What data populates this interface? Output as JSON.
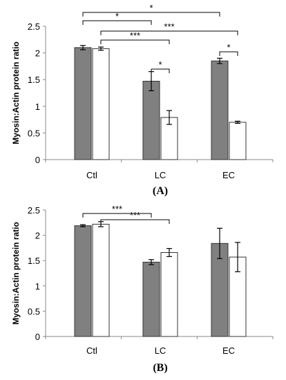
{
  "chart_data": [
    {
      "type": "bar",
      "panel_label": "(A)",
      "ylabel": "Myosin:Actin protein ratio",
      "categories": [
        "Ctl",
        "LC",
        "EC"
      ],
      "ylim": [
        0,
        2.5
      ],
      "yticks": [
        "0",
        "0.5",
        "1",
        "1.5",
        "2",
        "2.5"
      ],
      "grid": false,
      "series": [
        {
          "color": "#808080",
          "values": [
            2.1,
            1.47,
            1.85
          ],
          "errors": [
            0.04,
            0.18,
            0.05
          ]
        },
        {
          "color": "#ffffff",
          "values": [
            2.08,
            0.79,
            0.7
          ],
          "errors": [
            0.03,
            0.13,
            0.02
          ]
        }
      ],
      "significance": [
        {
          "label": "*",
          "from": [
            0,
            0
          ],
          "to": [
            1,
            0
          ]
        },
        {
          "label": "*",
          "from": [
            0,
            0
          ],
          "to": [
            2,
            0
          ]
        },
        {
          "label": "***",
          "from": [
            0,
            1
          ],
          "to": [
            1,
            1
          ]
        },
        {
          "label": "***",
          "from": [
            0,
            1
          ],
          "to": [
            2,
            1
          ]
        },
        {
          "label": "*",
          "from": [
            1,
            0
          ],
          "to": [
            1,
            1
          ]
        },
        {
          "label": "*",
          "from": [
            2,
            0
          ],
          "to": [
            2,
            1
          ]
        }
      ]
    },
    {
      "type": "bar",
      "panel_label": "(B)",
      "ylabel": "Myosin:Actin protein ratio",
      "categories": [
        "Ctl",
        "LC",
        "EC"
      ],
      "ylim": [
        0,
        2.5
      ],
      "yticks": [
        "0",
        "0.5",
        "1",
        "1.5",
        "2",
        "2.5"
      ],
      "grid": false,
      "series": [
        {
          "color": "#808080",
          "values": [
            2.19,
            1.47,
            1.84
          ],
          "errors": [
            0.02,
            0.05,
            0.3
          ]
        },
        {
          "color": "#ffffff",
          "values": [
            2.22,
            1.66,
            1.57
          ],
          "errors": [
            0.05,
            0.08,
            0.29
          ]
        }
      ],
      "significance": [
        {
          "label": "***",
          "from": [
            0,
            0
          ],
          "to": [
            1,
            0
          ]
        },
        {
          "label": "***",
          "from": [
            0,
            1
          ],
          "to": [
            1,
            1
          ]
        }
      ]
    }
  ]
}
